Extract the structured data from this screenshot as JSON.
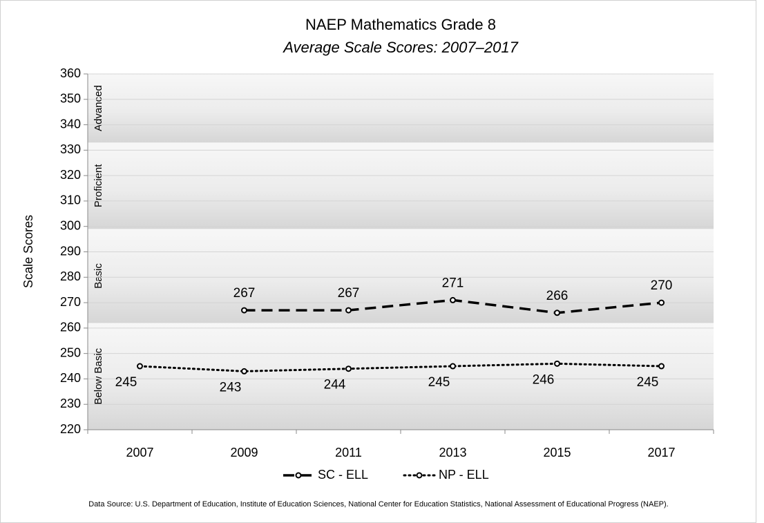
{
  "chart_data": {
    "type": "line",
    "title": "NAEP Mathematics Grade 8",
    "subtitle": "Average Scale Scores: 2007–2017",
    "y_label": "Scale Scores",
    "source": "Data Source: U.S. Department of Education, Institute of Education Sciences, National Center for Education Statistics, National Assessment of Educational Progress (NAEP).",
    "categories": [
      "2007",
      "2009",
      "2011",
      "2013",
      "2015",
      "2017"
    ],
    "series": [
      {
        "name": "SC - ELL",
        "color": "#000000",
        "dash": "dashed",
        "label_position": "above",
        "values": [
          null,
          267,
          267,
          271,
          266,
          270
        ]
      },
      {
        "name": "NP - ELL",
        "color": "#000000",
        "dash": "dotted",
        "label_position": "below",
        "values": [
          245,
          243,
          244,
          245,
          246,
          245
        ]
      }
    ],
    "bands": [
      {
        "label": "Below Basic",
        "from": 220,
        "to": 262
      },
      {
        "label": "Basic",
        "from": 262,
        "to": 299
      },
      {
        "label": "Proficient",
        "from": 299,
        "to": 333
      },
      {
        "label": "Advanced",
        "from": 333,
        "to": 360
      }
    ],
    "ylim": [
      220,
      360
    ],
    "yticks": [
      220,
      230,
      240,
      250,
      260,
      270,
      280,
      290,
      300,
      310,
      320,
      330,
      340,
      350,
      360
    ],
    "grid": true,
    "legend": "bottom"
  }
}
